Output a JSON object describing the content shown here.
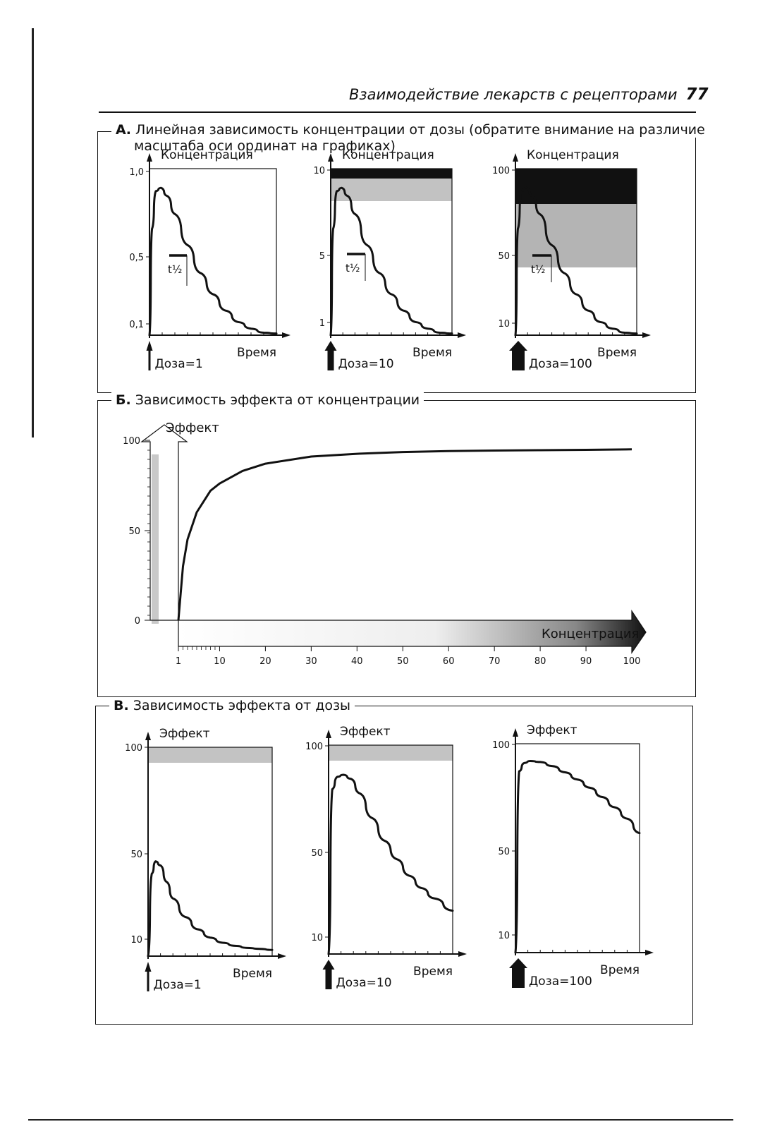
{
  "header": {
    "running_title": "Взаимодействие лекарств с рецепторами",
    "page_number": "77"
  },
  "sections": {
    "A": {
      "letter": "А.",
      "title_line1": "Линейная зависимость концентрации от дозы (обратите внимание на различие",
      "title_line2": "масштаба оси ординат на графиках)"
    },
    "B": {
      "letter": "Б.",
      "title": "Зависимость эффекта от концентрации"
    },
    "V": {
      "letter": "В.",
      "title": "Зависимость эффекта от дозы"
    }
  },
  "chart_data": [
    {
      "id": "A1",
      "type": "line",
      "ylabel": "Концентрация",
      "xlabel": "Время",
      "yticks": [
        "1,0",
        "0,5",
        "0,1"
      ],
      "ylim": [
        0,
        1.0
      ],
      "annotation": "t½",
      "dose_label": "Доза=1",
      "series": [
        {
          "x": [
            0,
            0.02,
            0.05,
            0.09,
            0.14,
            0.2,
            0.3,
            0.4,
            0.5,
            0.6,
            0.7,
            0.8,
            0.9,
            1.0
          ],
          "y": [
            0,
            0.65,
            0.88,
            0.9,
            0.85,
            0.74,
            0.55,
            0.38,
            0.25,
            0.15,
            0.08,
            0.04,
            0.015,
            0.01
          ]
        }
      ]
    },
    {
      "id": "A2",
      "type": "line",
      "ylabel": "Концентрация",
      "xlabel": "Время",
      "yticks": [
        "10",
        "5",
        "1"
      ],
      "ylim": [
        0,
        10
      ],
      "annotation": "t½",
      "dose_label": "Доза=10",
      "series": [
        {
          "x": [
            0,
            0.02,
            0.05,
            0.09,
            0.14,
            0.2,
            0.3,
            0.4,
            0.5,
            0.6,
            0.7,
            0.8,
            0.9,
            1.0
          ],
          "y": [
            0,
            6.5,
            8.8,
            9.0,
            8.5,
            7.4,
            5.5,
            3.8,
            2.5,
            1.5,
            0.8,
            0.4,
            0.15,
            0.1
          ]
        }
      ]
    },
    {
      "id": "A3",
      "type": "line",
      "ylabel": "Концентрация",
      "xlabel": "Время",
      "yticks": [
        "100",
        "50",
        "10"
      ],
      "ylim": [
        0,
        100
      ],
      "annotation": "t½",
      "dose_label": "Доза=100",
      "series": [
        {
          "x": [
            0,
            0.02,
            0.05,
            0.09,
            0.14,
            0.2,
            0.3,
            0.4,
            0.5,
            0.6,
            0.7,
            0.8,
            0.9,
            1.0
          ],
          "y": [
            0,
            65,
            88,
            90,
            85,
            74,
            55,
            38,
            25,
            15,
            8,
            4,
            1.5,
            1
          ]
        }
      ]
    },
    {
      "id": "B",
      "type": "line",
      "ylabel": "Эффект",
      "xlabel": "Концентрация",
      "yticks": [
        "100",
        "50",
        "0"
      ],
      "ylim": [
        0,
        100
      ],
      "xticks": [
        "1",
        "10",
        "20",
        "30",
        "40",
        "50",
        "60",
        "70",
        "80",
        "90",
        "100"
      ],
      "xlim": [
        1,
        100
      ],
      "series": [
        {
          "x": [
            1,
            2,
            3,
            5,
            8,
            10,
            15,
            20,
            30,
            40,
            50,
            60,
            70,
            80,
            90,
            100
          ],
          "y": [
            0,
            30,
            45,
            60,
            72,
            76,
            83,
            87,
            91,
            92.5,
            93.5,
            94,
            94.3,
            94.5,
            94.7,
            95
          ]
        }
      ]
    },
    {
      "id": "V1",
      "type": "line",
      "ylabel": "Эффект",
      "xlabel": "Время",
      "yticks": [
        "100",
        "50",
        "10"
      ],
      "ylim": [
        0,
        100
      ],
      "dose_label": "Доза=1",
      "series": [
        {
          "x": [
            0,
            0.03,
            0.06,
            0.1,
            0.15,
            0.2,
            0.3,
            0.4,
            0.5,
            0.6,
            0.7,
            0.8,
            0.9,
            1.0
          ],
          "y": [
            0,
            40,
            46,
            44,
            36,
            28,
            19,
            13,
            9,
            6.5,
            5,
            4,
            3.5,
            3
          ]
        }
      ]
    },
    {
      "id": "V2",
      "type": "line",
      "ylabel": "Эффект",
      "xlabel": "Время",
      "yticks": [
        "100",
        "50",
        "10"
      ],
      "ylim": [
        0,
        100
      ],
      "dose_label": "Доза=10",
      "series": [
        {
          "x": [
            0,
            0.03,
            0.07,
            0.12,
            0.18,
            0.25,
            0.35,
            0.45,
            0.55,
            0.65,
            0.75,
            0.85,
            1.0
          ],
          "y": [
            0,
            80,
            86,
            87,
            85,
            78,
            66,
            55,
            46,
            38,
            32,
            27,
            21
          ]
        }
      ]
    },
    {
      "id": "V3",
      "type": "line",
      "ylabel": "Эффект",
      "xlabel": "Время",
      "yticks": [
        "100",
        "50",
        "10"
      ],
      "ylim": [
        0,
        100
      ],
      "dose_label": "Доза=100",
      "series": [
        {
          "x": [
            0,
            0.03,
            0.07,
            0.12,
            0.2,
            0.3,
            0.4,
            0.5,
            0.6,
            0.7,
            0.8,
            0.9,
            1.0
          ],
          "y": [
            0,
            88,
            92,
            93,
            92.5,
            90.5,
            87.5,
            84,
            80,
            75.5,
            70.5,
            65,
            58
          ]
        }
      ]
    }
  ]
}
